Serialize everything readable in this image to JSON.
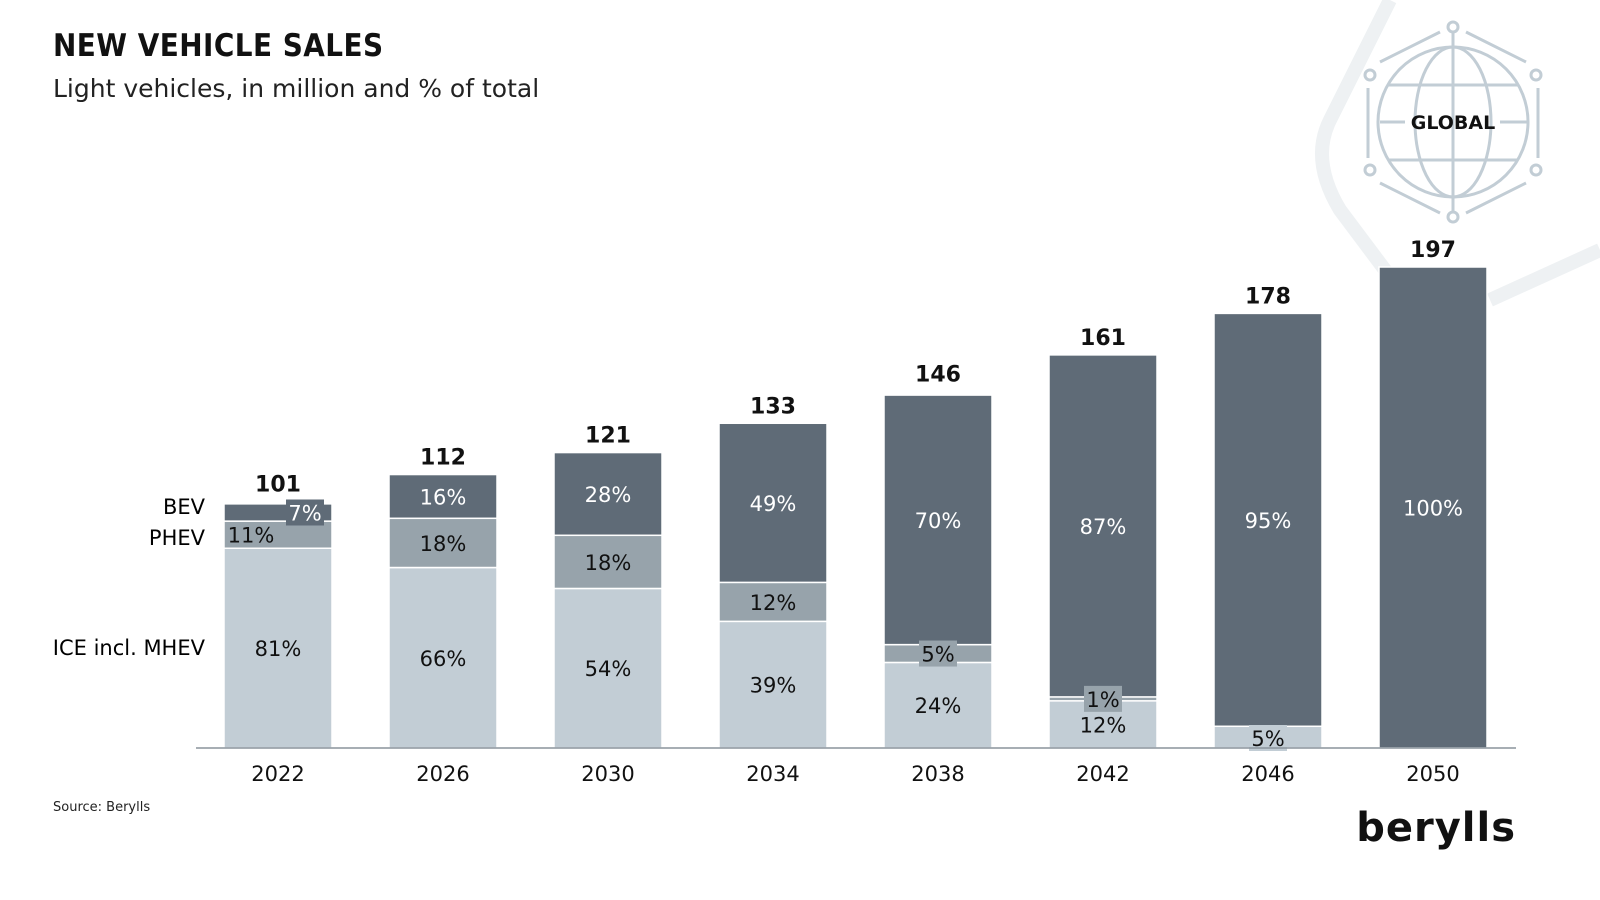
{
  "header": {
    "title": "NEW VEHICLE SALES",
    "subtitle": "Light vehicles, in million and % of total"
  },
  "badge": {
    "label": "GLOBAL",
    "icon": "globe-network-icon"
  },
  "footer": {
    "source": "Source: Berylls",
    "brand": "berylls"
  },
  "colors": {
    "ice": "#c2cdd5",
    "phev": "#97a3ab",
    "bev": "#5f6b77",
    "axis": "#8a949c"
  },
  "chart_data": {
    "type": "bar",
    "stacked": true,
    "title": "NEW VEHICLE SALES",
    "subtitle": "Light vehicles, in million and % of total",
    "categories": [
      "2022",
      "2026",
      "2030",
      "2034",
      "2038",
      "2042",
      "2046",
      "2050"
    ],
    "totals": [
      101,
      112,
      121,
      133,
      146,
      161,
      178,
      197
    ],
    "series": [
      {
        "name": "ICE incl. MHEV",
        "values_pct": [
          81,
          66,
          54,
          39,
          24,
          12,
          5,
          0
        ]
      },
      {
        "name": "PHEV",
        "values_pct": [
          11,
          18,
          18,
          12,
          5,
          1,
          0,
          0
        ]
      },
      {
        "name": "BEV",
        "values_pct": [
          7,
          16,
          28,
          49,
          70,
          87,
          95,
          100
        ]
      }
    ],
    "legend_placement": "left",
    "grid": false
  }
}
